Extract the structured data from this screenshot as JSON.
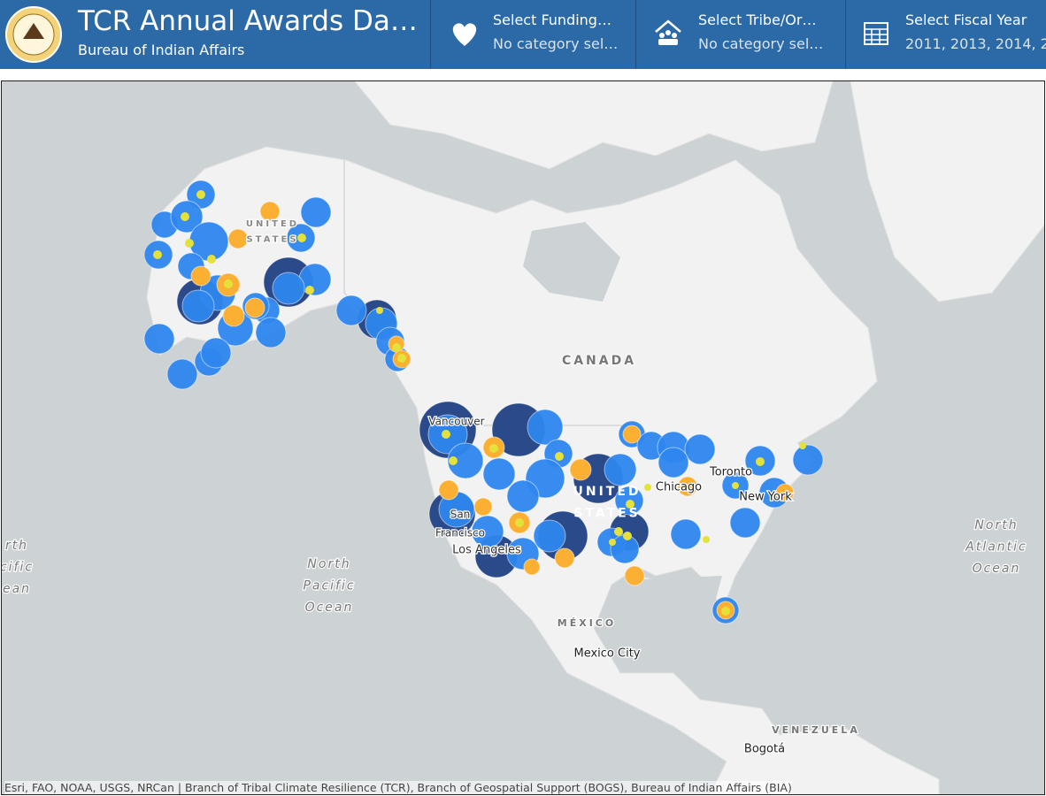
{
  "header": {
    "title": "TCR Annual Awards Da…",
    "subtitle": "Bureau of Indian Affairs"
  },
  "filters": [
    {
      "label": "Select Funding…",
      "value": "No category sel…"
    },
    {
      "label": "Select Tribe/Or…",
      "value": "No category sel…"
    },
    {
      "label": "Select Fiscal Year",
      "value": "2011, 2013, 2014, 2."
    }
  ],
  "map": {
    "labels": [
      {
        "lines": [
          "UNITED",
          "STATES"
        ]
      },
      {
        "lines": [
          "CANADA"
        ]
      },
      {
        "lines": [
          "Vancouver"
        ]
      },
      {
        "lines": [
          "UNITED",
          "STATES"
        ]
      },
      {
        "lines": [
          "Chicago"
        ]
      },
      {
        "lines": [
          "Toronto"
        ]
      },
      {
        "lines": [
          "New York"
        ]
      },
      {
        "lines": [
          "San",
          "Francisco"
        ]
      },
      {
        "lines": [
          "Los Angeles"
        ]
      },
      {
        "lines": [
          "North",
          "Pacific",
          "Ocean"
        ]
      },
      {
        "lines": [
          "North",
          "Atlantic",
          "Ocean"
        ]
      },
      {
        "lines": [
          "rth",
          "cific",
          "ean"
        ]
      },
      {
        "lines": [
          "MÉXICO"
        ]
      },
      {
        "lines": [
          "Mexico City"
        ]
      },
      {
        "lines": [
          "VENEZUELA"
        ]
      },
      {
        "lines": [
          "Bogotá"
        ]
      }
    ],
    "attribution": "Esri, FAO, NOAA, USGS, NRCan | Branch of Tribal Climate Resilience (TCR), Branch of Geospatial Support (BOGS), Bureau of Indian Affairs (BIA)"
  }
}
